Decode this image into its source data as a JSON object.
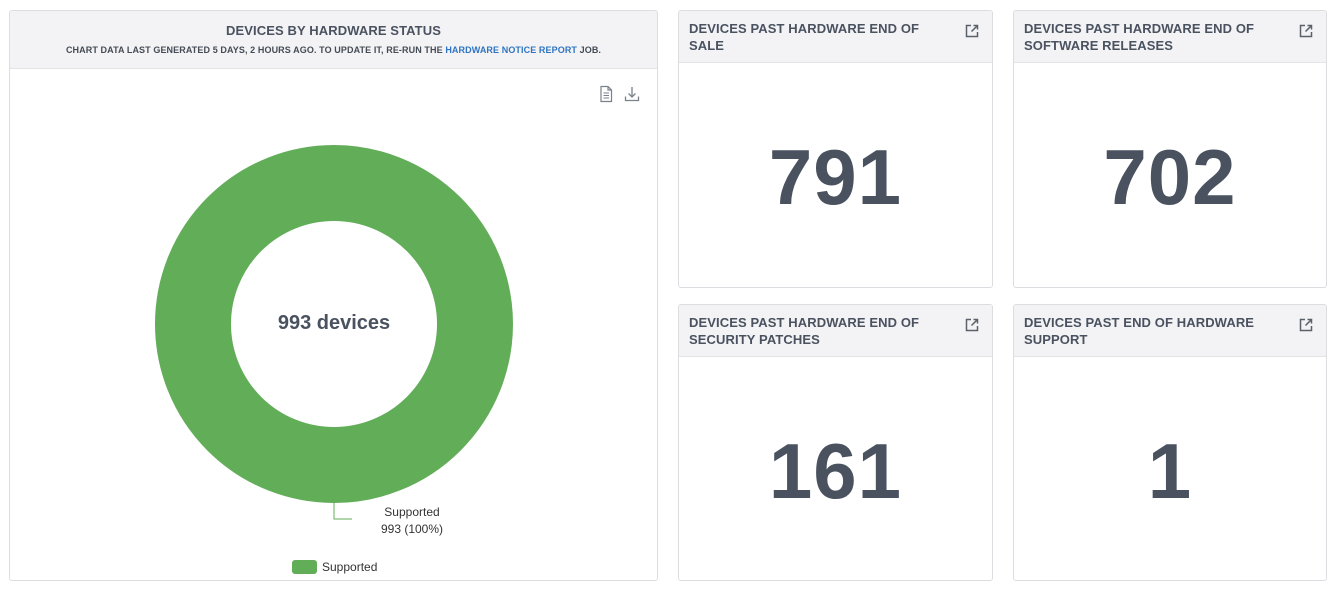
{
  "chart_panel": {
    "title": "DEVICES BY HARDWARE STATUS",
    "subtitle_prefix": "CHART DATA LAST GENERATED 5 DAYS, 2 HOURS AGO. TO UPDATE IT, RE-RUN THE ",
    "subtitle_link": "HARDWARE NOTICE REPORT",
    "subtitle_suffix": " JOB.",
    "link_color": "#2f74c0",
    "icons": [
      "document-icon",
      "download-icon"
    ]
  },
  "chart_data": {
    "type": "pie",
    "donut": true,
    "center_label": "993 devices",
    "slices": [
      {
        "label": "Supported",
        "value": 993,
        "percent": 100,
        "color": "#62ad58",
        "data_label_line1": "Supported",
        "data_label_line2": "993 (100%)"
      }
    ],
    "legend": {
      "entries": [
        "Supported"
      ],
      "placement": "bottom"
    }
  },
  "stats": [
    {
      "title": "DEVICES PAST HARDWARE END OF SALE",
      "value": "791",
      "icon": "external-link-icon"
    },
    {
      "title": "DEVICES PAST HARDWARE END OF SOFTWARE RELEASES",
      "value": "702",
      "icon": "external-link-icon"
    },
    {
      "title": "DEVICES PAST HARDWARE END OF SECURITY PATCHES",
      "value": "161",
      "icon": "external-link-icon"
    },
    {
      "title": "DEVICES PAST END OF HARDWARE SUPPORT",
      "value": "1",
      "icon": "external-link-icon"
    }
  ],
  "colors": {
    "text": "#4a5260",
    "header_bg": "#f3f3f5",
    "border": "#dcdde0",
    "supported": "#62ad58"
  }
}
